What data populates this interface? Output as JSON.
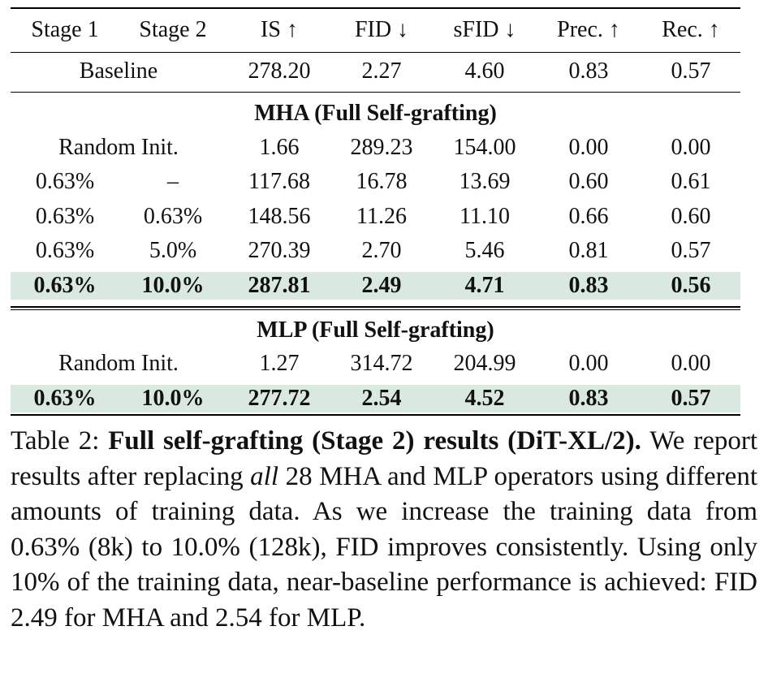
{
  "table": {
    "headers": [
      "Stage 1",
      "Stage 2",
      "IS ↑",
      "FID ↓",
      "sFID ↓",
      "Prec. ↑",
      "Rec. ↑"
    ],
    "baseline": {
      "label": "Baseline",
      "values": [
        "278.20",
        "2.27",
        "4.60",
        "0.83",
        "0.57"
      ]
    },
    "mha": {
      "title": "MHA (Full Self-grafting)",
      "random": {
        "label": "Random Init.",
        "values": [
          "1.66",
          "289.23",
          "154.00",
          "0.00",
          "0.00"
        ]
      },
      "rows": [
        [
          "0.63%",
          "–",
          "117.68",
          "16.78",
          "13.69",
          "0.60",
          "0.61"
        ],
        [
          "0.63%",
          "0.63%",
          "148.56",
          "11.26",
          "11.10",
          "0.66",
          "0.60"
        ],
        [
          "0.63%",
          "5.0%",
          "270.39",
          "2.70",
          "5.46",
          "0.81",
          "0.57"
        ],
        [
          "0.63%",
          "10.0%",
          "287.81",
          "2.49",
          "4.71",
          "0.83",
          "0.56"
        ]
      ]
    },
    "mlp": {
      "title": "MLP (Full Self-grafting)",
      "random": {
        "label": "Random Init.",
        "values": [
          "1.27",
          "314.72",
          "204.99",
          "0.00",
          "0.00"
        ]
      },
      "rows": [
        [
          "0.63%",
          "10.0%",
          "277.72",
          "2.54",
          "4.52",
          "0.83",
          "0.57"
        ]
      ]
    },
    "highlight_color": "#d9e9e0"
  },
  "caption": {
    "label": "Table 2: ",
    "title": "Full self-grafting (Stage 2) results (DiT-XL/2).",
    "body_1": "We report results after replacing ",
    "body_em": "all",
    "body_2": " 28 MHA and MLP operators using different amounts of training data. As we increase the training data from 0.63% (8k) to 10.0% (128k), FID improves consistently. Using only 10% of the training data, near-baseline performance is achieved: FID 2.49 for MHA and 2.54 for MLP."
  }
}
